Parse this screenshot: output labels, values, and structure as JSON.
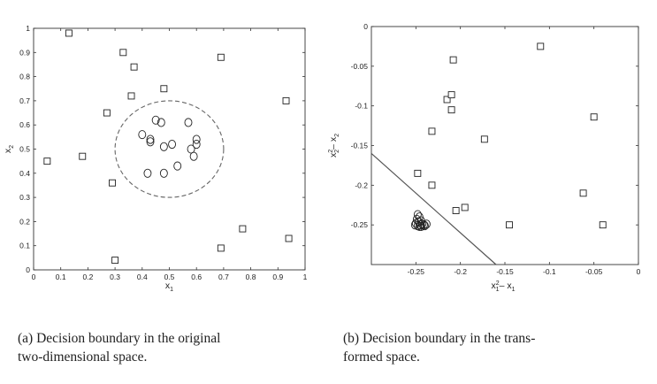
{
  "chart_data": [
    {
      "type": "scatter",
      "title": "",
      "xlabel": "x",
      "xlabel_sub": "1",
      "ylabel": "x",
      "ylabel_sub": "2",
      "xlim": [
        0,
        1
      ],
      "ylim": [
        0,
        1
      ],
      "xticks": [
        0,
        0.1,
        0.2,
        0.3,
        0.4,
        0.5,
        0.6,
        0.7,
        0.8,
        0.9,
        1
      ],
      "xtick_labels": [
        "0",
        "0.1",
        "0.2",
        "0.3",
        "0.4",
        "0.5",
        "0.6",
        "0.7",
        "0.8",
        "0.9",
        "1"
      ],
      "yticks": [
        0,
        0.1,
        0.2,
        0.3,
        0.4,
        0.5,
        0.6,
        0.7,
        0.8,
        0.9,
        1
      ],
      "ytick_labels": [
        "0",
        "0.1",
        "0.2",
        "0.3",
        "0.4",
        "0.5",
        "0.6",
        "0.7",
        "0.8",
        "0.9",
        "1"
      ],
      "grid": false,
      "series": [
        {
          "marker": "square",
          "points": [
            [
              0.13,
              0.98
            ],
            [
              0.33,
              0.9
            ],
            [
              0.37,
              0.84
            ],
            [
              0.69,
              0.88
            ],
            [
              0.93,
              0.7
            ],
            [
              0.36,
              0.72
            ],
            [
              0.48,
              0.75
            ],
            [
              0.27,
              0.65
            ],
            [
              0.05,
              0.45
            ],
            [
              0.18,
              0.47
            ],
            [
              0.29,
              0.36
            ],
            [
              0.3,
              0.04
            ],
            [
              0.69,
              0.09
            ],
            [
              0.77,
              0.17
            ],
            [
              0.94,
              0.13
            ]
          ]
        },
        {
          "marker": "circle",
          "points": [
            [
              0.45,
              0.62
            ],
            [
              0.47,
              0.61
            ],
            [
              0.57,
              0.61
            ],
            [
              0.4,
              0.56
            ],
            [
              0.43,
              0.53
            ],
            [
              0.43,
              0.54
            ],
            [
              0.48,
              0.51
            ],
            [
              0.51,
              0.52
            ],
            [
              0.58,
              0.5
            ],
            [
              0.6,
              0.52
            ],
            [
              0.6,
              0.54
            ],
            [
              0.59,
              0.47
            ],
            [
              0.53,
              0.43
            ],
            [
              0.42,
              0.4
            ],
            [
              0.48,
              0.4
            ]
          ]
        }
      ],
      "boundary": {
        "shape": "circle",
        "center": [
          0.5,
          0.5
        ],
        "radius": 0.2,
        "style": "dashed"
      }
    },
    {
      "type": "scatter",
      "title": "",
      "xlabel": "x",
      "xlabel_sup": "2",
      "xlabel_sub": "1",
      "xlabel_tail": "– x",
      "xlabel_tail_sub": "1",
      "ylabel": "x",
      "ylabel_sup": "2",
      "ylabel_sub": "2",
      "ylabel_tail": "– x",
      "ylabel_tail_sub": "2",
      "xlim": [
        -0.3,
        0
      ],
      "ylim": [
        -0.3,
        0
      ],
      "xticks": [
        -0.25,
        -0.2,
        -0.15,
        -0.1,
        -0.05,
        0
      ],
      "xtick_labels": [
        "-0.25",
        "-0.2",
        "-0.15",
        "-0.1",
        "-0.05",
        "0"
      ],
      "yticks": [
        -0.25,
        -0.2,
        -0.15,
        -0.1,
        -0.05,
        0
      ],
      "ytick_labels": [
        "-0.25",
        "-0.2",
        "-0.15",
        "-0.1",
        "-0.05",
        "0"
      ],
      "grid": false,
      "series": [
        {
          "marker": "square",
          "points": [
            [
              -0.11,
              -0.025
            ],
            [
              -0.208,
              -0.042
            ],
            [
              -0.215,
              -0.092
            ],
            [
              -0.21,
              -0.086
            ],
            [
              -0.21,
              -0.105
            ],
            [
              -0.05,
              -0.114
            ],
            [
              -0.232,
              -0.132
            ],
            [
              -0.173,
              -0.142
            ],
            [
              -0.248,
              -0.185
            ],
            [
              -0.232,
              -0.2
            ],
            [
              -0.062,
              -0.21
            ],
            [
              -0.195,
              -0.228
            ],
            [
              -0.205,
              -0.232
            ],
            [
              -0.145,
              -0.25
            ],
            [
              -0.04,
              -0.25
            ]
          ]
        },
        {
          "marker": "circle",
          "points": [
            [
              -0.248,
              -0.237
            ],
            [
              -0.246,
              -0.24
            ],
            [
              -0.249,
              -0.243
            ],
            [
              -0.244,
              -0.245
            ],
            [
              -0.247,
              -0.246
            ],
            [
              -0.25,
              -0.248
            ],
            [
              -0.243,
              -0.249
            ],
            [
              -0.245,
              -0.25
            ],
            [
              -0.248,
              -0.251
            ],
            [
              -0.241,
              -0.25
            ],
            [
              -0.238,
              -0.249
            ],
            [
              -0.24,
              -0.251
            ],
            [
              -0.244,
              -0.252
            ],
            [
              -0.251,
              -0.25
            ],
            [
              -0.246,
              -0.252
            ]
          ]
        }
      ],
      "boundary": {
        "shape": "line",
        "from": [
          -0.3,
          -0.16
        ],
        "to": [
          -0.16,
          -0.3
        ],
        "style": "solid"
      }
    }
  ],
  "captions": {
    "a_line1": "(a) Decision boundary in the original",
    "a_line2": "two-dimensional space.",
    "b_line1": "(b) Decision boundary in the trans-",
    "b_line2": "formed space."
  }
}
